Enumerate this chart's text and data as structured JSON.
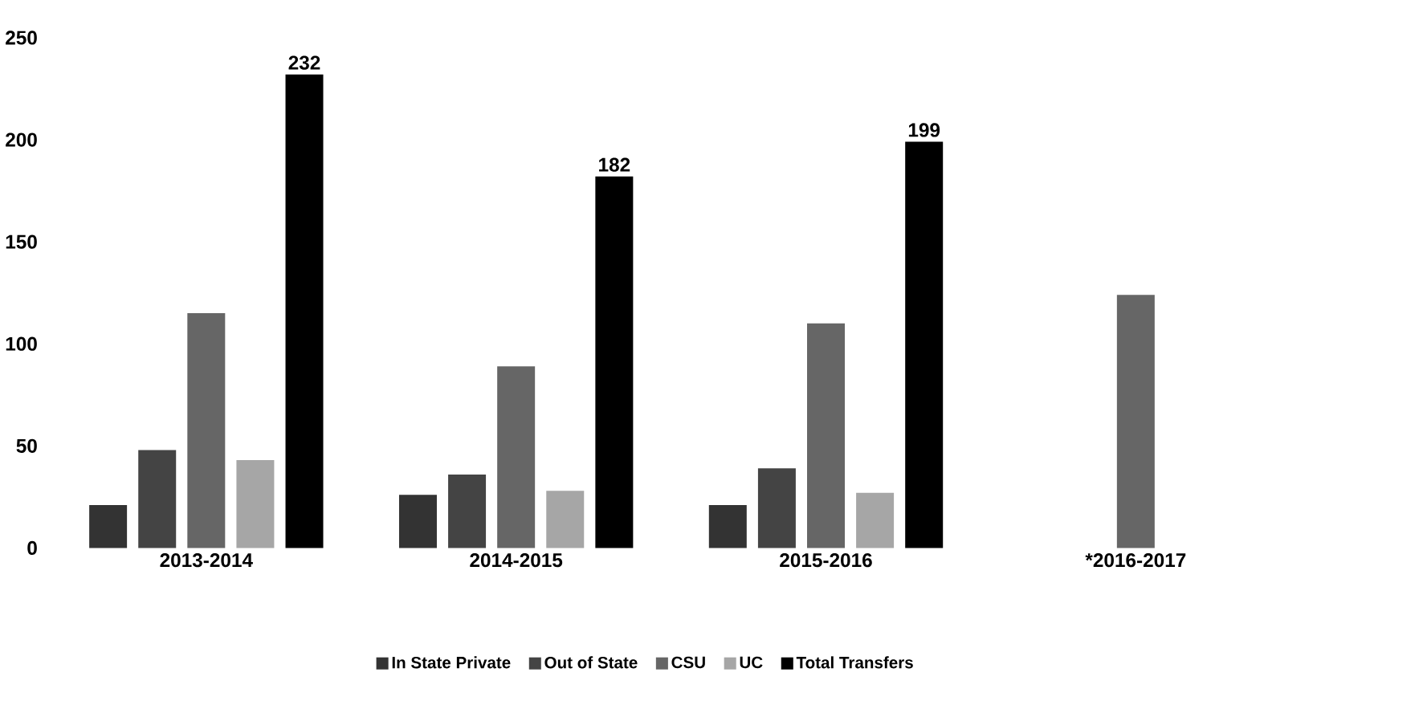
{
  "chart_data": {
    "type": "bar",
    "categories": [
      "2013-2014",
      "2014-2015",
      "2015-2016",
      "*2016-2017"
    ],
    "series": [
      {
        "name": "In State Private",
        "color": "#333333",
        "values": [
          21,
          26,
          21,
          null
        ]
      },
      {
        "name": "Out of State",
        "color": "#444444",
        "values": [
          48,
          36,
          39,
          null
        ]
      },
      {
        "name": "CSU",
        "color": "#666666",
        "values": [
          115,
          89,
          110,
          124
        ]
      },
      {
        "name": "UC",
        "color": "#a6a6a6",
        "values": [
          43,
          28,
          27,
          null
        ]
      },
      {
        "name": "Total Transfers",
        "color": "#000000",
        "values": [
          232,
          182,
          199,
          null
        ],
        "value_labels": [
          "232",
          "182",
          "199",
          null
        ]
      }
    ],
    "ylim": [
      0,
      250
    ],
    "yticks": [
      0,
      50,
      100,
      150,
      200,
      250
    ],
    "grid": false,
    "legend": "bottom"
  }
}
